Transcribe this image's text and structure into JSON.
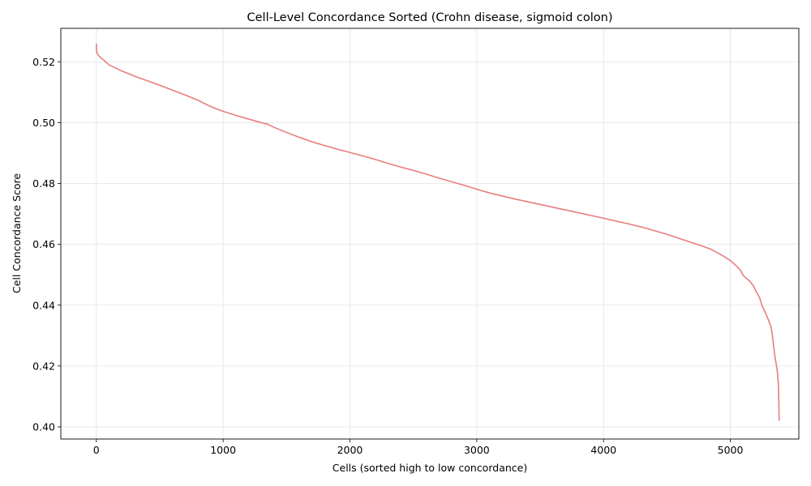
{
  "chart_data": {
    "type": "line",
    "title": "Cell-Level Concordance Sorted (Crohn disease, sigmoid colon)",
    "xlabel": "Cells (sorted high to low concordance)",
    "ylabel": "Cell Concordance Score",
    "xlim": [
      -280,
      5540
    ],
    "ylim": [
      0.396,
      0.531
    ],
    "x_ticks": [
      0,
      1000,
      2000,
      3000,
      4000,
      5000
    ],
    "y_ticks": [
      0.4,
      0.42,
      0.44,
      0.46,
      0.48,
      0.5,
      0.52
    ],
    "x_tick_labels": [
      "0",
      "1000",
      "2000",
      "3000",
      "4000",
      "5000"
    ],
    "y_tick_labels": [
      "0.40",
      "0.42",
      "0.44",
      "0.46",
      "0.48",
      "0.50",
      "0.52"
    ],
    "grid": true,
    "legend": "none",
    "series": [
      {
        "color": "#e87d7d",
        "x": [
          0,
          2,
          10,
          30,
          60,
          100,
          150,
          200,
          250,
          300,
          400,
          500,
          600,
          700,
          800,
          900,
          1000,
          1100,
          1200,
          1300,
          1350,
          1400,
          1500,
          1600,
          1700,
          1800,
          1900,
          2000,
          2100,
          2200,
          2300,
          2400,
          2500,
          2600,
          2700,
          2800,
          2900,
          3000,
          3100,
          3200,
          3300,
          3400,
          3500,
          3600,
          3700,
          3800,
          3900,
          4000,
          4100,
          4200,
          4300,
          4400,
          4500,
          4600,
          4700,
          4800,
          4850,
          4900,
          4950,
          5000,
          5050,
          5080,
          5100,
          5150,
          5180,
          5200,
          5230,
          5250,
          5280,
          5300,
          5310,
          5320,
          5330,
          5340,
          5350,
          5360,
          5370,
          5375,
          5380,
          5385
        ],
        "y": [
          0.526,
          0.5235,
          0.5225,
          0.5215,
          0.5205,
          0.519,
          0.518,
          0.517,
          0.5162,
          0.5153,
          0.5138,
          0.5123,
          0.5107,
          0.5091,
          0.5074,
          0.5053,
          0.5037,
          0.5024,
          0.5012,
          0.5,
          0.4995,
          0.4985,
          0.4968,
          0.4952,
          0.4937,
          0.4925,
          0.4913,
          0.4902,
          0.4891,
          0.4879,
          0.4866,
          0.4854,
          0.4843,
          0.4831,
          0.4818,
          0.4806,
          0.4794,
          0.4781,
          0.4769,
          0.4759,
          0.4749,
          0.474,
          0.4731,
          0.4722,
          0.4713,
          0.4704,
          0.4695,
          0.4686,
          0.4676,
          0.4667,
          0.4657,
          0.4645,
          0.4633,
          0.4619,
          0.4605,
          0.4591,
          0.4583,
          0.4572,
          0.456,
          0.4547,
          0.4528,
          0.4515,
          0.4498,
          0.448,
          0.4465,
          0.4448,
          0.4425,
          0.4398,
          0.4372,
          0.4352,
          0.434,
          0.433,
          0.4305,
          0.427,
          0.4235,
          0.421,
          0.4185,
          0.416,
          0.413,
          0.402
        ]
      }
    ]
  }
}
